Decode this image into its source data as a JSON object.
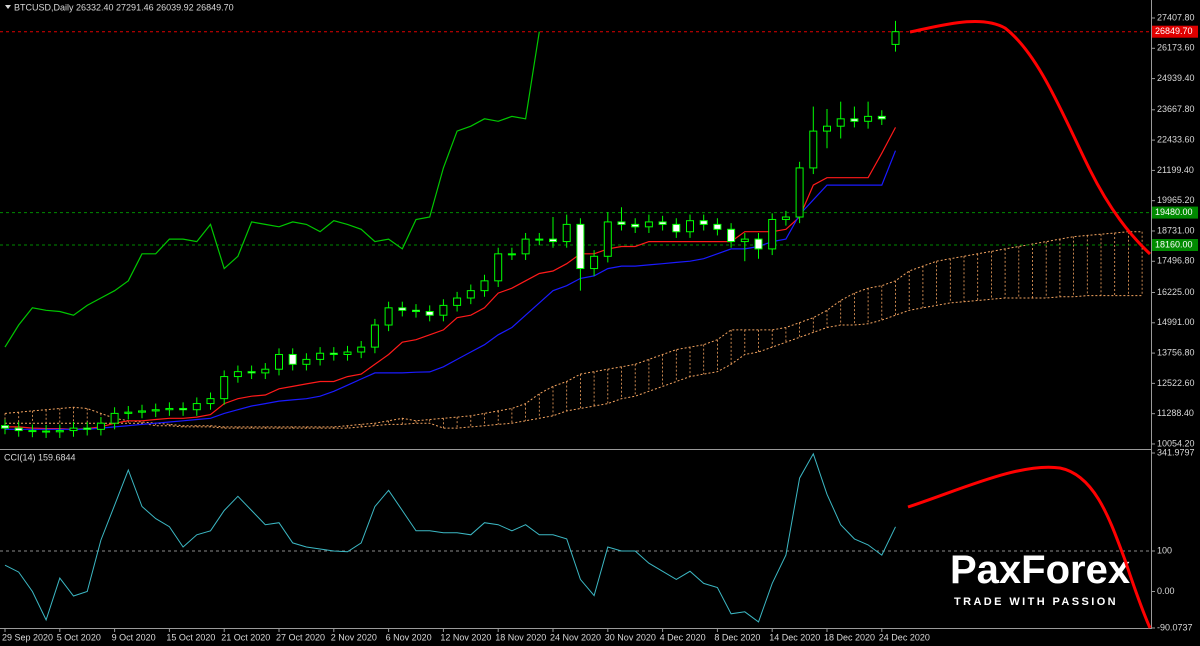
{
  "chart_data": [
    {
      "type": "candlestick",
      "title": "BTCUSD,Daily  26332.40 27291.46 26039.92 26849.70",
      "categories": [
        "29 Sep 2020",
        null,
        null,
        null,
        "5 Oct 2020",
        null,
        null,
        null,
        "9 Oct 2020",
        null,
        null,
        null,
        "15 Oct 2020",
        null,
        null,
        null,
        "21 Oct 2020",
        null,
        null,
        null,
        "27 Oct 2020",
        null,
        null,
        null,
        "2 Nov 2020",
        null,
        null,
        null,
        "6 Nov 2020",
        null,
        null,
        null,
        "12 Nov 2020",
        null,
        null,
        null,
        "18 Nov 2020",
        null,
        null,
        null,
        "24 Nov 2020",
        null,
        null,
        null,
        "30 Nov 2020",
        null,
        null,
        null,
        "4 Dec 2020",
        null,
        null,
        null,
        "8 Dec 2020",
        null,
        null,
        null,
        "14 Dec 2020",
        null,
        null,
        null,
        "18 Dec 2020",
        null,
        null,
        null,
        "24 Dec 2020",
        null,
        null,
        null,
        null,
        null,
        null,
        null,
        null,
        null,
        null,
        null,
        null,
        null,
        null,
        null,
        null,
        null,
        null,
        null
      ],
      "open": [
        10800,
        10700,
        10600,
        10580,
        10550,
        10600,
        10700,
        10650,
        10900,
        11300,
        11350,
        11400,
        11450,
        11500,
        11450,
        11700,
        11900,
        12800,
        13000,
        12950,
        13100,
        13700,
        13300,
        13500,
        13750,
        13700,
        13800,
        14000,
        14900,
        15600,
        15500,
        15450,
        15300,
        15700,
        16000,
        16300,
        16700,
        17800,
        17800,
        18400,
        18400,
        18300,
        19000,
        17200,
        17700,
        19100,
        19000,
        18900,
        19100,
        19000,
        18700,
        19150,
        19000,
        18800,
        18300,
        18400,
        18000,
        19200,
        19300,
        21300,
        22800,
        23000,
        23300,
        23200,
        23400,
        26332.4,
        null,
        null,
        null,
        null,
        null,
        null,
        null,
        null,
        null,
        null,
        null,
        null,
        null,
        null,
        null,
        null,
        null,
        null
      ],
      "high": [
        11050,
        10950,
        10850,
        10830,
        10850,
        10950,
        10950,
        11150,
        11550,
        11600,
        11650,
        11700,
        11750,
        11750,
        11950,
        12150,
        13050,
        13250,
        13250,
        13350,
        13950,
        13950,
        13750,
        14000,
        14000,
        14050,
        14250,
        15150,
        15850,
        15850,
        15750,
        15700,
        15950,
        16250,
        16550,
        16950,
        18050,
        18050,
        18650,
        18650,
        19300,
        19400,
        19250,
        17950,
        19500,
        19700,
        19250,
        19400,
        19350,
        19250,
        19400,
        19400,
        19250,
        19050,
        18650,
        18650,
        19450,
        19550,
        21550,
        23800,
        23700,
        24000,
        23800,
        24000,
        23650,
        27291.46,
        null,
        null,
        null,
        null,
        null,
        null,
        null,
        null,
        null,
        null,
        null,
        null,
        null,
        null,
        null,
        null,
        null,
        null
      ],
      "low": [
        10450,
        10350,
        10330,
        10300,
        10300,
        10350,
        10400,
        10400,
        10650,
        11050,
        11100,
        11150,
        11200,
        11200,
        11200,
        11450,
        11650,
        12550,
        12700,
        12700,
        12850,
        13050,
        13050,
        13250,
        13450,
        13450,
        13550,
        13750,
        14650,
        15250,
        15200,
        15050,
        15050,
        15450,
        15750,
        16050,
        16450,
        17550,
        17550,
        18150,
        18050,
        18050,
        16300,
        16900,
        17450,
        18750,
        18650,
        18650,
        18750,
        18450,
        18450,
        18750,
        18550,
        18050,
        17500,
        17600,
        17750,
        18950,
        19050,
        21050,
        22100,
        22500,
        22950,
        22900,
        23050,
        26039.92,
        null,
        null,
        null,
        null,
        null,
        null,
        null,
        null,
        null,
        null,
        null,
        null,
        null,
        null,
        null,
        null,
        null,
        null
      ],
      "close": [
        10700,
        10600,
        10580,
        10550,
        10600,
        10700,
        10650,
        10900,
        11300,
        11350,
        11400,
        11450,
        11500,
        11450,
        11700,
        11900,
        12800,
        13000,
        12950,
        13100,
        13700,
        13300,
        13500,
        13750,
        13700,
        13800,
        14000,
        14900,
        15600,
        15500,
        15450,
        15300,
        15700,
        16000,
        16300,
        16700,
        17800,
        17800,
        18400,
        18400,
        18300,
        19000,
        17200,
        17700,
        19100,
        19000,
        18900,
        19100,
        19000,
        18700,
        19150,
        19000,
        18800,
        18300,
        18400,
        18000,
        19200,
        19300,
        21300,
        22800,
        23000,
        23300,
        23200,
        23400,
        23300,
        26849.7,
        null,
        null,
        null,
        null,
        null,
        null,
        null,
        null,
        null,
        null,
        null,
        null,
        null,
        null,
        null,
        null,
        null,
        null
      ],
      "candle_colors": {
        "wick": "#00ff00",
        "up_fill": "#000000",
        "down_fill": "#ffffff"
      },
      "series": [
        {
          "color": "#ff1a1a",
          "values": [
            10750,
            10750,
            10700,
            10680,
            10680,
            10650,
            10680,
            10750,
            10900,
            11000,
            11000,
            11050,
            11100,
            11100,
            11150,
            11250,
            11700,
            11900,
            12000,
            12050,
            12300,
            12400,
            12500,
            12600,
            12600,
            12800,
            12900,
            13300,
            13700,
            14200,
            14300,
            14500,
            14700,
            15200,
            15300,
            15600,
            16200,
            16400,
            16700,
            17000,
            17100,
            17400,
            17800,
            17800,
            18000,
            18100,
            18100,
            18300,
            18300,
            18300,
            18300,
            18300,
            18300,
            18300,
            18700,
            18700,
            18700,
            18800,
            19300,
            20600,
            20900,
            20900,
            20900,
            20900,
            21900,
            22950,
            null,
            null,
            null,
            null,
            null,
            null,
            null,
            null,
            null,
            null,
            null,
            null,
            null,
            null,
            null,
            null,
            null,
            null
          ]
        },
        {
          "color": "#1a1aff",
          "values": [
            10650,
            10650,
            10650,
            10650,
            10650,
            10650,
            10650,
            10700,
            10750,
            10800,
            10850,
            10900,
            10950,
            11000,
            11050,
            11100,
            11300,
            11450,
            11600,
            11700,
            11800,
            11850,
            11900,
            12000,
            12200,
            12450,
            12700,
            12950,
            12950,
            12950,
            12980,
            12990,
            13200,
            13500,
            13800,
            14100,
            14500,
            14800,
            15300,
            15800,
            16300,
            16500,
            16800,
            16900,
            17200,
            17300,
            17300,
            17350,
            17400,
            17450,
            17500,
            17600,
            17800,
            18000,
            18000,
            18100,
            18300,
            18400,
            19400,
            20000,
            20600,
            20600,
            20600,
            20600,
            20600,
            22000,
            null,
            null,
            null,
            null,
            null,
            null,
            null,
            null,
            null,
            null,
            null,
            null,
            null,
            null,
            null,
            null,
            null,
            null
          ]
        },
        {
          "color": "#00c800",
          "values": [
            14000,
            14900,
            15600,
            15500,
            15450,
            15300,
            15700,
            16000,
            16300,
            16700,
            17800,
            17800,
            18400,
            18400,
            18300,
            19000,
            17200,
            17700,
            19100,
            19000,
            18900,
            19100,
            19000,
            18700,
            19150,
            19000,
            18800,
            18300,
            18400,
            18000,
            19200,
            19300,
            21300,
            22800,
            23000,
            23300,
            23200,
            23400,
            23300,
            26849.7,
            null,
            null,
            null,
            null,
            null,
            null,
            null,
            null,
            null,
            null,
            null,
            null,
            null,
            null,
            null,
            null,
            null,
            null,
            null,
            null,
            null,
            null,
            null,
            null,
            null,
            null,
            null,
            null,
            null,
            null,
            null,
            null,
            null,
            null,
            null,
            null,
            null,
            null,
            null,
            null,
            null,
            null,
            null,
            null
          ]
        }
      ],
      "cloud": {
        "color": "#f4a460",
        "upper": [
          11300,
          11350,
          11400,
          11450,
          11500,
          11550,
          11500,
          11300,
          11100,
          11000,
          10950,
          10900,
          10850,
          10800,
          10800,
          10800,
          10750,
          10750,
          10750,
          10750,
          10750,
          10750,
          10750,
          10750,
          10750,
          10800,
          10850,
          10900,
          11000,
          11100,
          11000,
          11050,
          11100,
          11150,
          11200,
          11300,
          11400,
          11500,
          11700,
          12100,
          12400,
          12600,
          12900,
          13000,
          13100,
          13200,
          13300,
          13500,
          13700,
          13900,
          14000,
          14100,
          14300,
          14700,
          14700,
          14700,
          14700,
          14800,
          15000,
          15200,
          15500,
          15900,
          16200,
          16400,
          16500,
          16700,
          17100,
          17300,
          17500,
          17600,
          17700,
          17800,
          17900,
          18000,
          18100,
          18200,
          18300,
          18400,
          18500,
          18550,
          18600,
          18650,
          18700,
          18700
        ],
        "lower": [
          10900,
          10900,
          10900,
          10900,
          10900,
          10900,
          10900,
          10900,
          10900,
          10900,
          10900,
          10800,
          10800,
          10750,
          10750,
          10750,
          10700,
          10700,
          10700,
          10700,
          10700,
          10700,
          10700,
          10700,
          10700,
          10700,
          10750,
          10800,
          10850,
          10850,
          10900,
          10900,
          10700,
          10700,
          10750,
          10800,
          10850,
          10900,
          11000,
          11100,
          11200,
          11400,
          11500,
          11600,
          11700,
          11900,
          12000,
          12200,
          12400,
          12600,
          12800,
          12900,
          13000,
          13300,
          13700,
          13800,
          14000,
          14200,
          14400,
          14600,
          14800,
          14900,
          14900,
          14950,
          15100,
          15300,
          15500,
          15600,
          15700,
          15800,
          15850,
          15900,
          15950,
          16000,
          16000,
          16000,
          16000,
          16050,
          16050,
          16100,
          16100,
          16100,
          16100,
          16100
        ]
      },
      "price_lines": [
        {
          "value": 26849.7,
          "label": "26849.70",
          "color": "#e00000"
        },
        {
          "value": 19480,
          "label": "19480.00",
          "color": "#008a00"
        },
        {
          "value": 18160,
          "label": "18160.00",
          "color": "#008a00"
        }
      ],
      "ylim": [
        9890,
        28141
      ],
      "yticks": [
        {
          "value": 27407.8,
          "label": "27407.80"
        },
        {
          "value": 26173.6,
          "label": "26173.60"
        },
        {
          "value": 24939.4,
          "label": "24939.40"
        },
        {
          "value": 23667.8,
          "label": "23667.80"
        },
        {
          "value": 22433.6,
          "label": "22433.60"
        },
        {
          "value": 21199.4,
          "label": "21199.40"
        },
        {
          "value": 19965.2,
          "label": "19965.20"
        },
        {
          "value": 18731,
          "label": "18731.00"
        },
        {
          "value": 17496.8,
          "label": "17496.80"
        },
        {
          "value": 16225,
          "label": "16225.00"
        },
        {
          "value": 14991,
          "label": "14991.00"
        },
        {
          "value": 13756.8,
          "label": "13756.80"
        },
        {
          "value": 12522.6,
          "label": "12522.60"
        },
        {
          "value": 11288.4,
          "label": "11288.40"
        },
        {
          "value": 10054.2,
          "label": "10054.20"
        }
      ]
    },
    {
      "type": "line",
      "title": "CCI(14) 159.6844",
      "color": "#3cb8c4",
      "values": [
        65,
        48,
        0,
        -70,
        33,
        -11,
        0,
        127,
        213,
        300,
        210,
        180,
        160,
        110,
        140,
        150,
        200,
        235,
        200,
        165,
        170,
        120,
        110,
        105,
        100,
        98,
        120,
        210,
        250,
        200,
        150,
        150,
        145,
        145,
        140,
        170,
        165,
        150,
        165,
        140,
        140,
        130,
        30,
        -10,
        110,
        100,
        100,
        70,
        50,
        30,
        50,
        20,
        10,
        -55,
        -50,
        -75,
        20,
        90,
        280,
        340,
        240,
        165,
        130,
        115,
        90,
        159.6844,
        null,
        null,
        null,
        null,
        null,
        null,
        null,
        null,
        null,
        null,
        null,
        null,
        null,
        null,
        null,
        null,
        null,
        null
      ],
      "levels": [
        100
      ],
      "ylim": [
        -90.0737,
        341.9797
      ],
      "yticks": [
        {
          "value": 341.9797,
          "label": "341.9797"
        },
        100,
        {
          "value": 0,
          "label": "0.00"
        },
        {
          "value": -90.0737,
          "label": "-90.0737"
        }
      ]
    }
  ],
  "watermark": {
    "brand": "PaxForex",
    "tagline": "TRADE WITH PASSION"
  }
}
